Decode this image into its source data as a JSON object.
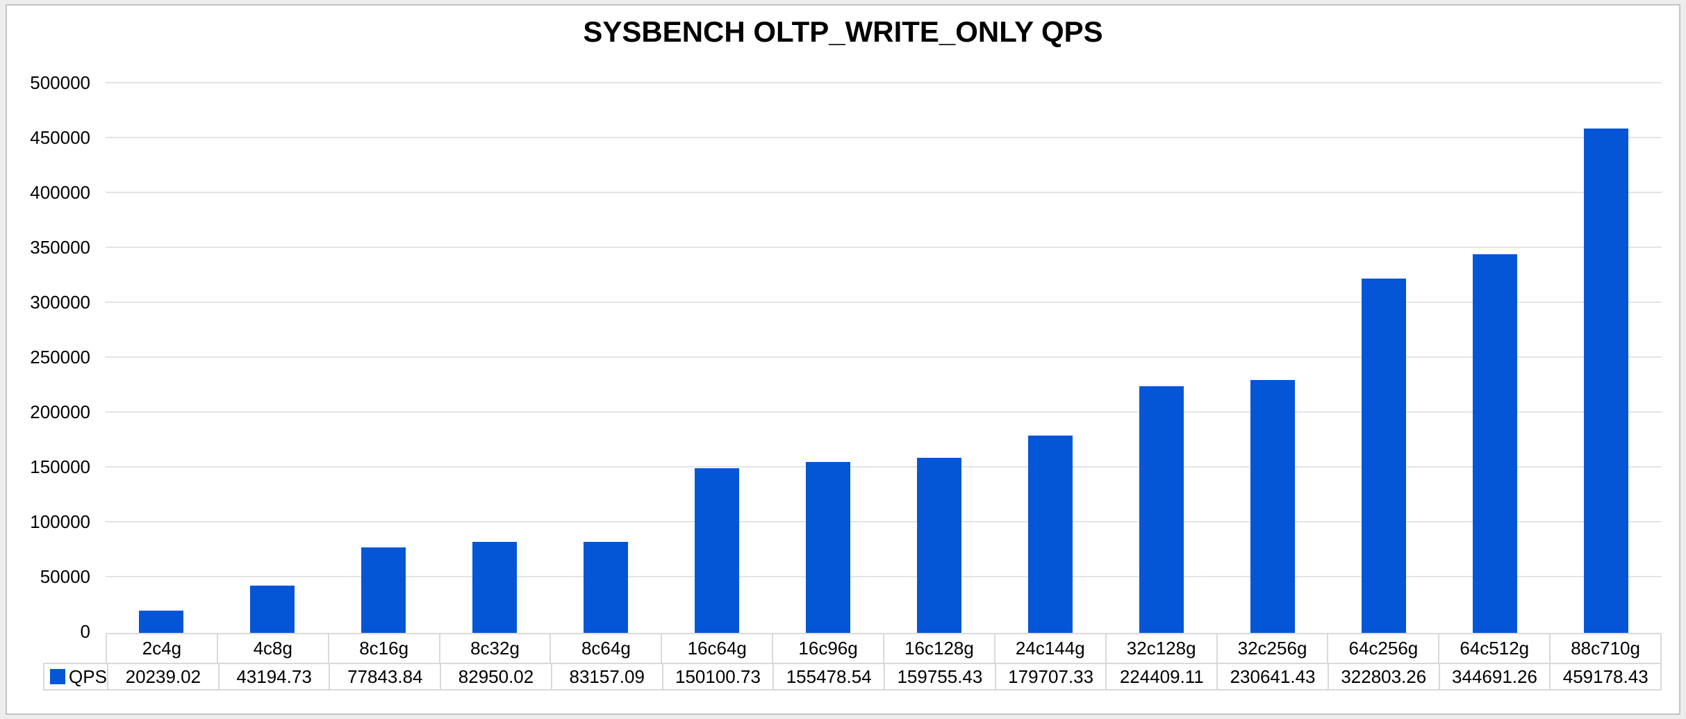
{
  "chart_data": {
    "type": "bar",
    "title": "SYSBENCH OLTP_WRITE_ONLY QPS",
    "categories": [
      "2c4g",
      "4c8g",
      "8c16g",
      "8c32g",
      "8c64g",
      "16c64g",
      "16c96g",
      "16c128g",
      "24c144g",
      "32c128g",
      "32c256g",
      "64c256g",
      "64c512g",
      "88c710g"
    ],
    "series": [
      {
        "name": "QPS",
        "values": [
          20239.02,
          43194.73,
          77843.84,
          82950.02,
          83157.09,
          150100.73,
          155478.54,
          159755.43,
          179707.33,
          224409.11,
          230641.43,
          322803.26,
          344691.26,
          459178.43
        ]
      }
    ],
    "value_labels": [
      "20239.02",
      "43194.73",
      "77843.84",
      "82950.02",
      "83157.09",
      "150100.73",
      "155478.54",
      "159755.43",
      "179707.33",
      "224409.11",
      "230641.43",
      "322803.26",
      "344691.26",
      "459178.43"
    ],
    "xlabel": "",
    "ylabel": "",
    "ylim": [
      0,
      500000
    ],
    "yticks": [
      0,
      50000,
      100000,
      150000,
      200000,
      250000,
      300000,
      350000,
      400000,
      450000,
      500000
    ],
    "grid": "horizontal-only",
    "legend_position": "bottom-left-data-table",
    "data_table_shown": true,
    "colors": {
      "bar": "#0456D6",
      "gridline": "#E4E4E4",
      "table_border": "#D9D9D9",
      "frame_border": "#C4C4C4",
      "chart_background": "#FFFFFF",
      "outer_background": "#EDEDED",
      "text": "#000000"
    }
  }
}
